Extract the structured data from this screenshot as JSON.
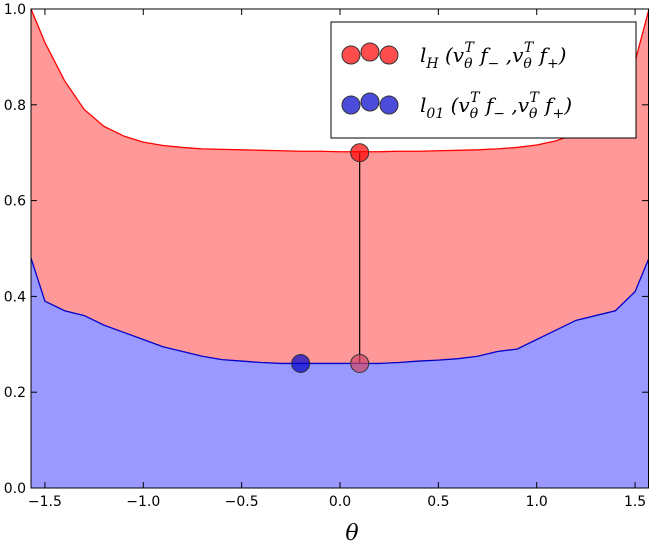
{
  "chart_data": {
    "type": "area",
    "title": "",
    "xlabel": "θ",
    "ylabel": "",
    "xlim": [
      -1.5708,
      1.5708
    ],
    "ylim": [
      0.0,
      1.0
    ],
    "grid": false,
    "legend_position": "top-right",
    "x_ticks": [
      {
        "value": -1.5,
        "label": "−1.5"
      },
      {
        "value": -1.0,
        "label": "−1.0"
      },
      {
        "value": -0.5,
        "label": "−0.5"
      },
      {
        "value": 0.0,
        "label": "0.0"
      },
      {
        "value": 0.5,
        "label": "0.5"
      },
      {
        "value": 1.0,
        "label": "1.0"
      },
      {
        "value": 1.5,
        "label": "1.5"
      }
    ],
    "y_ticks": [
      {
        "value": 0.0,
        "label": "0.0"
      },
      {
        "value": 0.2,
        "label": "0.2"
      },
      {
        "value": 0.4,
        "label": "0.4"
      },
      {
        "value": 0.6,
        "label": "0.6"
      },
      {
        "value": 0.8,
        "label": "0.8"
      },
      {
        "value": 1.0,
        "label": "1.0"
      }
    ],
    "x": [
      -1.5708,
      -1.5,
      -1.4,
      -1.3,
      -1.2,
      -1.1,
      -1.0,
      -0.9,
      -0.8,
      -0.7,
      -0.6,
      -0.5,
      -0.4,
      -0.3,
      -0.2,
      -0.1,
      0.0,
      0.1,
      0.2,
      0.3,
      0.4,
      0.5,
      0.6,
      0.7,
      0.8,
      0.9,
      1.0,
      1.1,
      1.2,
      1.3,
      1.4,
      1.5,
      1.5708
    ],
    "series": [
      {
        "name": "l_H (v_θ^T f_− , v_θ^T f_+)",
        "color": "#ff0000",
        "fill": "#ff9999",
        "values": [
          1.0,
          0.93,
          0.85,
          0.79,
          0.755,
          0.735,
          0.722,
          0.715,
          0.711,
          0.708,
          0.707,
          0.706,
          0.705,
          0.704,
          0.703,
          0.703,
          0.702,
          0.702,
          0.702,
          0.703,
          0.703,
          0.704,
          0.705,
          0.706,
          0.708,
          0.711,
          0.716,
          0.725,
          0.74,
          0.765,
          0.81,
          0.89,
          1.0
        ]
      },
      {
        "name": "l_01 (v_θ^T f_− , v_θ^T f_+)",
        "color": "#0000cc",
        "fill": "#9999ff",
        "values": [
          0.48,
          0.39,
          0.37,
          0.36,
          0.34,
          0.325,
          0.31,
          0.295,
          0.285,
          0.275,
          0.268,
          0.265,
          0.262,
          0.26,
          0.26,
          0.26,
          0.26,
          0.26,
          0.26,
          0.262,
          0.265,
          0.267,
          0.27,
          0.275,
          0.285,
          0.29,
          0.31,
          0.33,
          0.35,
          0.36,
          0.37,
          0.41,
          0.48
        ]
      }
    ],
    "markers": [
      {
        "x": 0.1,
        "y": 0.7,
        "color": "#ff0000"
      },
      {
        "x": 0.1,
        "y": 0.26,
        "color": "#cc4466"
      },
      {
        "x": -0.2,
        "y": 0.26,
        "color": "#0000cc"
      }
    ],
    "vertical_segment": {
      "x": 0.1,
      "y_from": 0.26,
      "y_to": 0.7,
      "color": "#000000"
    },
    "legend": [
      {
        "label_base": "l",
        "label_sub": "H",
        "marker_color": "#ff0000"
      },
      {
        "label_base": "l",
        "label_sub": "01",
        "marker_color": "#0000cc"
      }
    ],
    "legend_args": {
      "v": "v",
      "theta": "θ",
      "T": "T",
      "f": "f",
      "minus": "−",
      "plus": "+",
      "comma": ","
    }
  }
}
